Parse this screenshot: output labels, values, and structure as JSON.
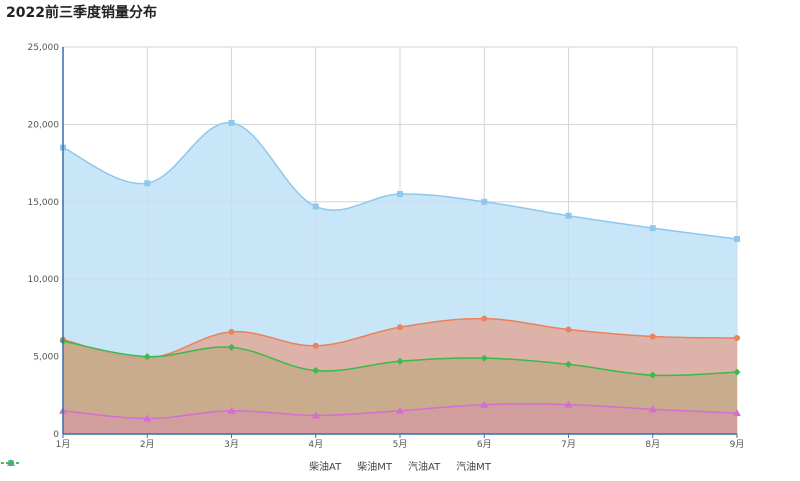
{
  "chart_data": {
    "type": "area",
    "title": "2022前三季度销量分布",
    "categories": [
      "1月",
      "2月",
      "3月",
      "4月",
      "5月",
      "6月",
      "7月",
      "8月",
      "9月"
    ],
    "ylim": [
      0,
      25000
    ],
    "yticks": [
      "0",
      "5,000",
      "10,000",
      "15,000",
      "20,000",
      "25,000"
    ],
    "ytick_values": [
      0,
      5000,
      10000,
      15000,
      20000,
      25000
    ],
    "grid": true,
    "legend_position": "bottom-center",
    "series": [
      {
        "name": "柴油MT",
        "color": "#8ec8ec",
        "fill": "#bfe1f7",
        "marker": "square",
        "values": [
          18500,
          16200,
          20100,
          14700,
          15500,
          15000,
          14100,
          13300,
          12600
        ]
      },
      {
        "name": "柴油AT",
        "color": "#e8835c",
        "fill": "#e0a99a",
        "marker": "circle",
        "values": [
          6100,
          4900,
          6600,
          5700,
          6900,
          7450,
          6750,
          6300,
          6200
        ]
      },
      {
        "name": "汽油MT",
        "color": "#3cb94a",
        "fill": "#c6a98a",
        "marker": "diamond",
        "values": [
          6000,
          5000,
          5600,
          4100,
          4700,
          4900,
          4500,
          3800,
          4000
        ]
      },
      {
        "name": "汽油AT",
        "color": "#d36fd0",
        "fill": "#d49aa0",
        "marker": "triangle",
        "values": [
          1500,
          1000,
          1500,
          1200,
          1500,
          1900,
          1900,
          1600,
          1350
        ]
      }
    ],
    "legend_order": [
      "柴油AT",
      "柴油MT",
      "汽油AT",
      "汽油MT"
    ]
  }
}
